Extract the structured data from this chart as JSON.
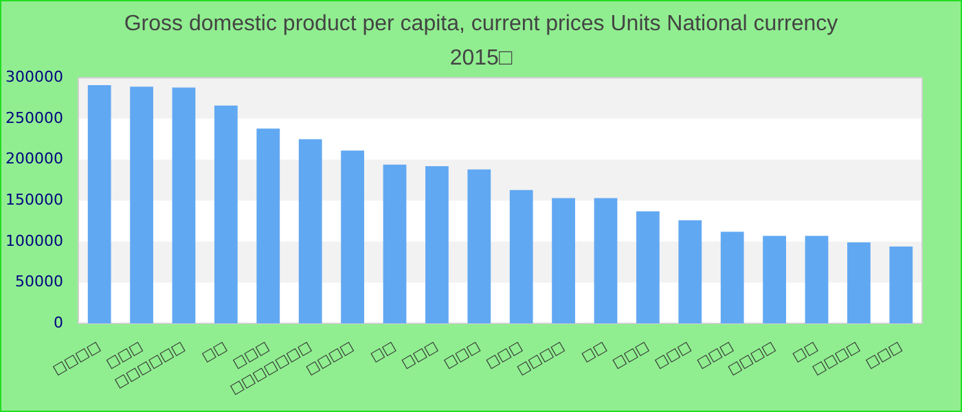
{
  "chart_data": {
    "type": "bar",
    "title": "Gross domestic product per capita, current prices Units National currency 2015□",
    "categories": [
      "□□□□",
      "□□□",
      "□□□□□□",
      "□□",
      "□□□",
      "□□□□□□□",
      "□□□□",
      "□□",
      "□□□",
      "□□□",
      "□□□",
      "□□□□",
      "□□",
      "□□□",
      "□□□",
      "□□□",
      "□□□□",
      "□□",
      "□□□□",
      "□□□"
    ],
    "values": [
      291000,
      289000,
      288000,
      266000,
      238000,
      225000,
      211000,
      194000,
      192000,
      188000,
      163000,
      153000,
      153000,
      137000,
      126000,
      112000,
      107000,
      107000,
      99000,
      94000
    ],
    "color": "#61a8f2",
    "ylim": [
      0,
      300000
    ],
    "yticks": [
      0,
      50000,
      100000,
      150000,
      200000,
      250000,
      300000
    ],
    "bands": [
      {
        "axis": "y",
        "from": 50000,
        "to": 100000,
        "color": "#f2f2f2"
      },
      {
        "axis": "y",
        "from": 150000,
        "to": 200000,
        "color": "#f2f2f2"
      },
      {
        "axis": "y",
        "from": 250000,
        "to": 300000,
        "color": "#f2f2f2"
      }
    ]
  }
}
